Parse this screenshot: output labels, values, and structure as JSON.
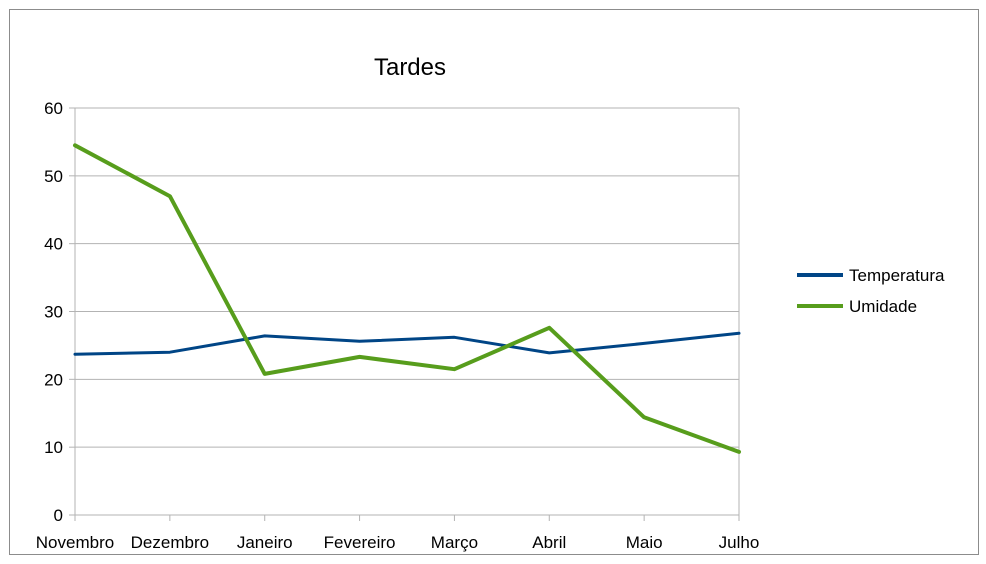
{
  "chart_data": {
    "type": "line",
    "title": "Tardes",
    "xlabel": "",
    "ylabel": "",
    "categories": [
      "Novembro",
      "Dezembro",
      "Janeiro",
      "Fevereiro",
      "Março",
      "Abril",
      "Maio",
      "Julho"
    ],
    "ylim": [
      0,
      60
    ],
    "yticks": [
      0,
      10,
      20,
      30,
      40,
      50,
      60
    ],
    "grid": true,
    "legend_position": "right",
    "series": [
      {
        "name": "Temperatura",
        "color": "#004586",
        "values": [
          23.7,
          24.0,
          26.4,
          25.6,
          26.2,
          23.9,
          25.3,
          26.8
        ]
      },
      {
        "name": "Umidade",
        "color": "#579d1c",
        "values": [
          54.5,
          47.0,
          20.8,
          23.3,
          21.5,
          27.6,
          14.4,
          9.3
        ]
      }
    ]
  }
}
